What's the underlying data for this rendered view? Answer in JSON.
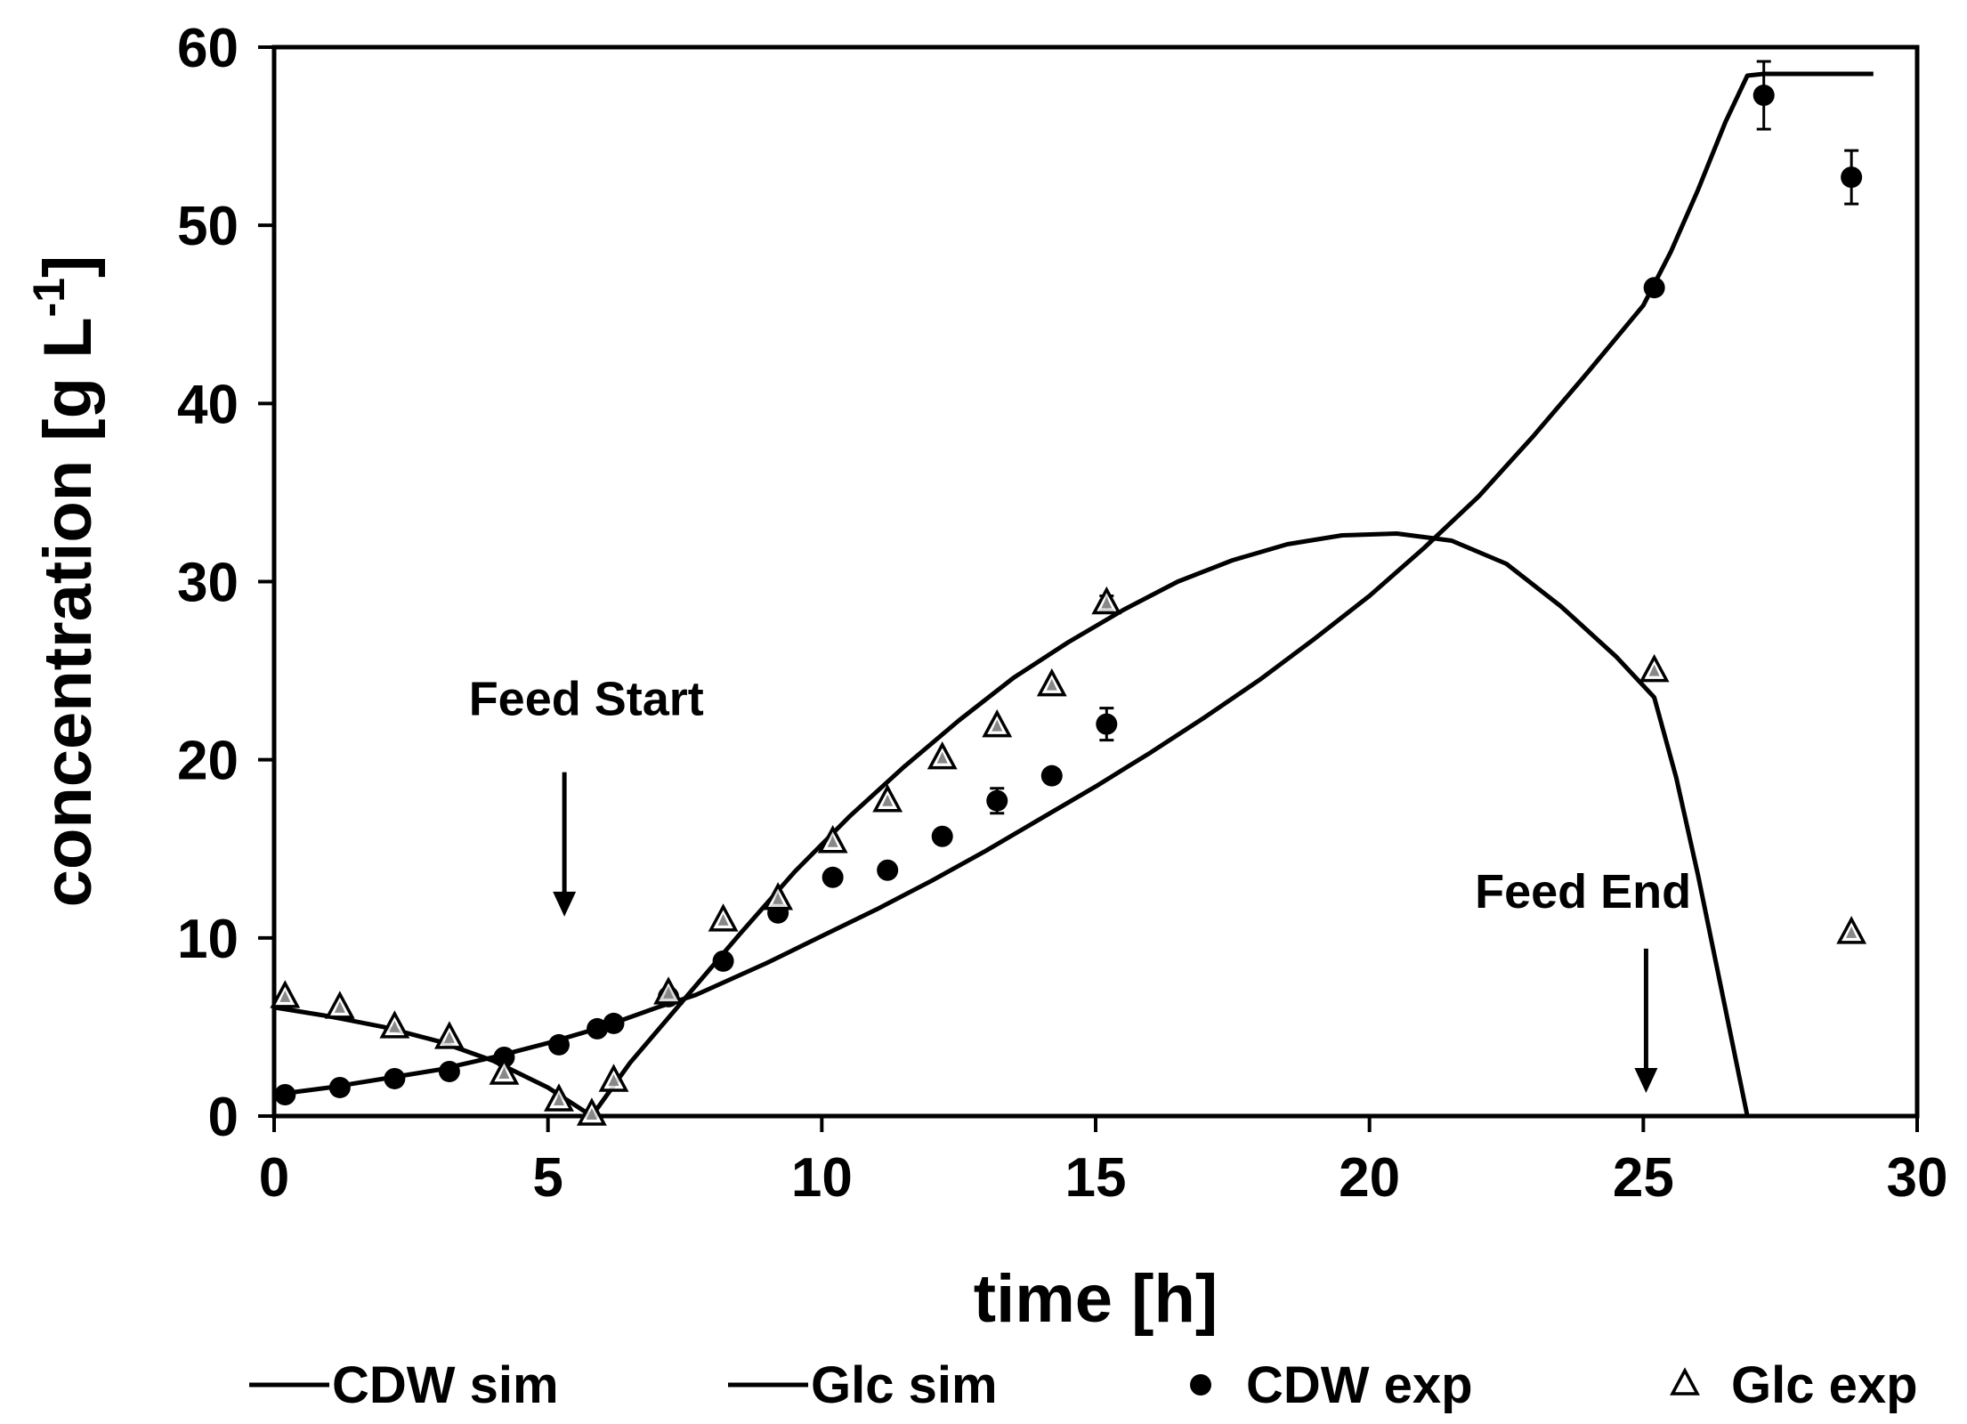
{
  "chart_data": {
    "type": "line",
    "title": "",
    "xlabel": "time [h]",
    "ylabel": "concentration [g L",
    "ylabel_sup": "-1",
    "ylabel_close": "]",
    "xlim": [
      0,
      30
    ],
    "ylim": [
      0,
      60
    ],
    "xticks": [
      0,
      5,
      10,
      15,
      20,
      25,
      30
    ],
    "yticks": [
      0,
      10,
      20,
      30,
      40,
      50,
      60
    ],
    "grid": false,
    "legend_position": "bottom",
    "series": [
      {
        "name": "CDW sim",
        "kind": "line",
        "x": [
          0,
          1,
          2,
          3,
          4,
          5,
          6,
          7,
          7.7,
          9,
          10,
          11,
          12,
          13,
          14,
          15,
          16,
          17,
          18,
          19,
          20,
          21,
          22,
          23,
          24,
          25,
          25.5,
          26,
          26.5,
          26.9,
          27.2,
          29.2
        ],
        "y": [
          1.2,
          1.6,
          2.1,
          2.6,
          3.3,
          4.1,
          5.0,
          6.1,
          6.8,
          8.6,
          10.1,
          11.6,
          13.2,
          14.9,
          16.7,
          18.5,
          20.4,
          22.4,
          24.5,
          26.8,
          29.2,
          31.9,
          34.8,
          38.2,
          41.8,
          45.5,
          48.5,
          52.0,
          55.8,
          58.4,
          58.5,
          58.5
        ]
      },
      {
        "name": "Glc sim",
        "kind": "line",
        "x": [
          0,
          1,
          2,
          3,
          4,
          5,
          5.8,
          6.5,
          7.5,
          8.5,
          9.5,
          10.5,
          11.5,
          12.5,
          13.5,
          14.5,
          15.5,
          16.5,
          17.5,
          18.5,
          19.5,
          20.5,
          21.5,
          22.5,
          23.5,
          24.5,
          25.2,
          25.6,
          26,
          26.4,
          26.7,
          26.9
        ],
        "y": [
          6.1,
          5.6,
          5.0,
          4.2,
          3.1,
          1.6,
          0.0,
          3.0,
          6.6,
          10.2,
          13.7,
          16.8,
          19.6,
          22.2,
          24.6,
          26.6,
          28.4,
          30.0,
          31.2,
          32.1,
          32.6,
          32.7,
          32.3,
          31.0,
          28.6,
          25.8,
          23.5,
          19.0,
          13.5,
          7.5,
          3.0,
          0.0
        ]
      },
      {
        "name": "CDW exp",
        "kind": "marker-circle",
        "x": [
          0.2,
          1.2,
          2.2,
          3.2,
          4.2,
          5.2,
          5.9,
          6.2,
          7.2,
          8.2,
          9.2,
          10.2,
          11.2,
          12.2,
          13.2,
          14.2,
          15.2,
          25.2,
          27.2,
          28.8
        ],
        "y": [
          1.2,
          1.6,
          2.1,
          2.5,
          3.3,
          4.0,
          4.9,
          5.2,
          6.7,
          8.7,
          11.4,
          13.4,
          13.8,
          15.7,
          17.7,
          19.1,
          22.0,
          46.5,
          57.3,
          52.7
        ],
        "err": [
          0,
          0,
          0,
          0,
          0,
          0,
          0,
          0,
          0,
          0,
          0,
          0,
          0,
          0,
          0.7,
          0,
          0.9,
          0,
          1.9,
          1.5
        ]
      },
      {
        "name": "Glc exp",
        "kind": "marker-triangle",
        "x": [
          0.2,
          1.2,
          2.2,
          3.2,
          4.2,
          5.2,
          5.8,
          6.2,
          7.2,
          8.2,
          9.2,
          10.2,
          11.2,
          12.2,
          13.2,
          14.2,
          15.2,
          25.2,
          28.8
        ],
        "y": [
          6.7,
          6.1,
          5.0,
          4.4,
          2.4,
          0.9,
          0.1,
          2.0,
          6.9,
          11.0,
          12.2,
          15.4,
          17.7,
          20.1,
          21.9,
          24.2,
          28.8,
          25.0,
          10.3
        ],
        "err": [
          0,
          0,
          0,
          0,
          0,
          0,
          0,
          0,
          0,
          0,
          0,
          0,
          0,
          0,
          0,
          0,
          0.4,
          0,
          0
        ]
      }
    ],
    "annotations": [
      {
        "text": "Feed Start",
        "x": 5.7,
        "y": 22.5,
        "arrow_from": [
          5.3,
          19.3
        ],
        "arrow_to": [
          5.3,
          11.2
        ]
      },
      {
        "text": "Feed End",
        "x": 23.9,
        "y": 11.7,
        "arrow_from": [
          25.05,
          9.4
        ],
        "arrow_to": [
          25.05,
          1.3
        ]
      }
    ]
  }
}
